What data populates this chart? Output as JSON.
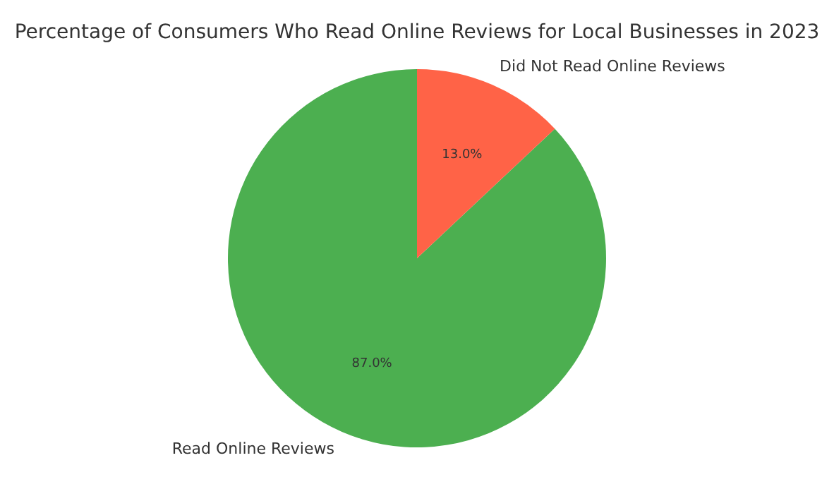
{
  "chart_data": {
    "type": "pie",
    "title": "Percentage of Consumers Who Read Online Reviews for Local Businesses in 2023",
    "categories": [
      "Read Online Reviews",
      "Did Not Read Online Reviews"
    ],
    "values": [
      87,
      13
    ],
    "colors": [
      "#4caf50",
      "#ff6347"
    ],
    "value_labels": [
      "87.0%",
      "13.0%"
    ]
  }
}
